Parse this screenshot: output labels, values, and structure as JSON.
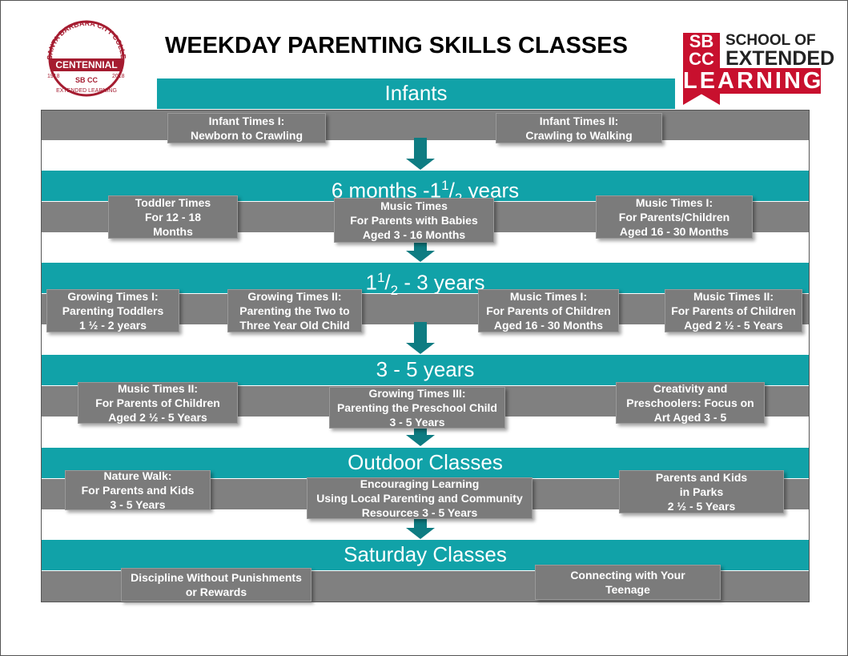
{
  "header": {
    "title": "WEEKDAY PARENTING SKILLS CLASSES",
    "left_logo": {
      "arc": "SANTA BARBARA CITY COLLEGE",
      "banner": "CENTENNIAL",
      "year_start": "1918",
      "year_end": "2018",
      "mark": "SB CC",
      "bottom": "EXTENDED LEARNING"
    },
    "right_logo": {
      "mark_top": "SB",
      "mark_bottom": "CC",
      "line1": "SCHOOL OF",
      "line2": "EXTENDED",
      "line3": "LEARNING"
    }
  },
  "sections": [
    {
      "title": [
        {
          "text": "Infants"
        }
      ],
      "classes": [
        {
          "lines": [
            "Infant Times I:",
            "Newborn to Crawling"
          ]
        },
        {
          "lines": [
            "Infant Times II:",
            "Crawling to Walking"
          ]
        }
      ]
    },
    {
      "title": [
        {
          "text": "6 months -1"
        },
        {
          "text": "1",
          "pos": "sup"
        },
        {
          "text": "/"
        },
        {
          "text": "2",
          "pos": "sub"
        },
        {
          "text": " years"
        }
      ],
      "classes": [
        {
          "lines": [
            "Toddler Times",
            "For 12 - 18",
            "Months"
          ]
        },
        {
          "lines": [
            "Music Times",
            "For Parents with Babies",
            "Aged 3 - 16 Months"
          ]
        },
        {
          "lines": [
            "Music Times I:",
            "For Parents/Children",
            "Aged 16 - 30 Months"
          ]
        }
      ]
    },
    {
      "title": [
        {
          "text": "1"
        },
        {
          "text": "1",
          "pos": "sup"
        },
        {
          "text": "/"
        },
        {
          "text": "2",
          "pos": "sub"
        },
        {
          "text": " - 3 years"
        }
      ],
      "classes": [
        {
          "lines": [
            "Growing Times I:",
            "Parenting Toddlers",
            "1 ½ - 2 years"
          ]
        },
        {
          "lines": [
            "Growing Times II:",
            "Parenting the Two to",
            "Three Year Old Child"
          ]
        },
        {
          "lines": [
            "Music Times I:",
            "For Parents of Children",
            "Aged 16 - 30 Months"
          ]
        },
        {
          "lines": [
            "Music Times II:",
            "For Parents of Children",
            "Aged 2  ½ - 5 Years"
          ]
        }
      ]
    },
    {
      "title": [
        {
          "text": "3 - 5 years"
        }
      ],
      "classes": [
        {
          "lines": [
            "Music Times II:",
            "For Parents of Children",
            "Aged 2  ½ - 5 Years"
          ]
        },
        {
          "lines": [
            "Growing Times III:",
            "Parenting the Preschool Child",
            "3 - 5 Years"
          ]
        },
        {
          "lines": [
            "Creativity and",
            "Preschoolers: Focus on",
            "Art Aged 3 - 5"
          ]
        }
      ]
    },
    {
      "title": [
        {
          "text": "Outdoor Classes"
        }
      ],
      "classes": [
        {
          "lines": [
            "Nature Walk:",
            "For Parents and Kids",
            "3 - 5 Years"
          ]
        },
        {
          "lines": [
            "Encouraging Learning",
            "Using Local Parenting and Community",
            "Resources 3 - 5 Years"
          ]
        },
        {
          "lines": [
            "Parents and Kids",
            "in Parks",
            "2  ½ - 5 Years"
          ]
        }
      ]
    },
    {
      "title": [
        {
          "text": "Saturday Classes"
        }
      ],
      "classes": [
        {
          "lines": [
            "Discipline Without Punishments",
            "or Rewards"
          ]
        },
        {
          "lines": [
            "Connecting with Your",
            "Teenage"
          ]
        }
      ]
    }
  ]
}
